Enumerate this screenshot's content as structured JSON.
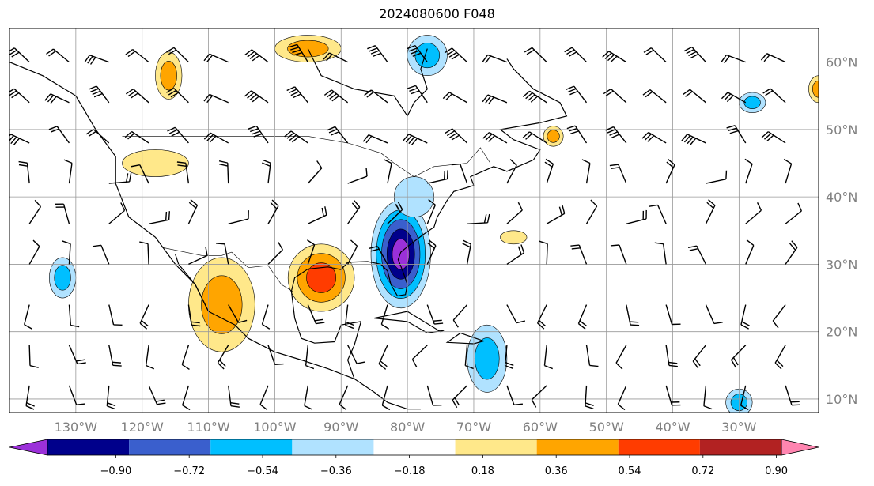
{
  "title": "2024080600 F048",
  "map": {
    "lon_range": [
      -140,
      -18
    ],
    "lat_range": [
      8,
      65
    ],
    "lon_ticks": [
      {
        "value": -130,
        "label": "130°W"
      },
      {
        "value": -120,
        "label": "120°W"
      },
      {
        "value": -110,
        "label": "110°W"
      },
      {
        "value": -100,
        "label": "100°W"
      },
      {
        "value": -90,
        "label": "90°W"
      },
      {
        "value": -80,
        "label": "80°W"
      },
      {
        "value": -70,
        "label": "70°W"
      },
      {
        "value": -60,
        "label": "60°W"
      },
      {
        "value": -50,
        "label": "50°W"
      },
      {
        "value": -40,
        "label": "40°W"
      },
      {
        "value": -30,
        "label": "30°W"
      }
    ],
    "lat_ticks": [
      {
        "value": 10,
        "label": "10°N"
      },
      {
        "value": 20,
        "label": "20°N"
      },
      {
        "value": 30,
        "label": "30°N"
      },
      {
        "value": 40,
        "label": "40°N"
      },
      {
        "value": 50,
        "label": "50°N"
      },
      {
        "value": 60,
        "label": "60°N"
      }
    ],
    "grid": true,
    "wind_barbs": true
  },
  "colorbar": {
    "extend": "both",
    "colors": [
      "#9b30d9",
      "#00008b",
      "#3a5fcd",
      "#00bfff",
      "#b0e2ff",
      "#ffffff",
      "#ffe88a",
      "#ffa500",
      "#ff3c00",
      "#b22222",
      "#ff85b0"
    ],
    "levels": [
      {
        "value": -0.9,
        "label": "−0.90"
      },
      {
        "value": -0.72,
        "label": "−0.72"
      },
      {
        "value": -0.54,
        "label": "−0.54"
      },
      {
        "value": -0.36,
        "label": "−0.36"
      },
      {
        "value": -0.18,
        "label": "−0.18"
      },
      {
        "value": 0.18,
        "label": "0.18"
      },
      {
        "value": 0.36,
        "label": "0.36"
      },
      {
        "value": 0.54,
        "label": "0.54"
      },
      {
        "value": 0.72,
        "label": "0.72"
      },
      {
        "value": 0.9,
        "label": "0.90"
      }
    ]
  },
  "anomaly_regions": [
    {
      "name": "southeast-us-cyclone",
      "lon": -81,
      "lat": 31.5,
      "rx": 4.5,
      "ry": 8,
      "levels": [
        -0.18,
        -0.36,
        -0.54,
        -0.72,
        -0.9
      ]
    },
    {
      "name": "mid-atlantic",
      "lon": -79,
      "lat": 40,
      "rx": 3,
      "ry": 3,
      "levels": [
        -0.18
      ]
    },
    {
      "name": "hudson-bay-north",
      "lon": -77,
      "lat": 61,
      "rx": 3,
      "ry": 3,
      "levels": [
        -0.18,
        -0.36
      ]
    },
    {
      "name": "caribbean-east",
      "lon": -68,
      "lat": 16,
      "rx": 3,
      "ry": 5,
      "levels": [
        -0.18,
        -0.36
      ]
    },
    {
      "name": "pacific-west",
      "lon": -132,
      "lat": 28,
      "rx": 2,
      "ry": 3,
      "levels": [
        -0.18,
        -0.36
      ]
    },
    {
      "name": "atlantic-sw",
      "lon": -30,
      "lat": 9.5,
      "rx": 2,
      "ry": 2,
      "levels": [
        -0.18,
        -0.36
      ]
    },
    {
      "name": "atlantic-north",
      "lon": -28,
      "lat": 54,
      "rx": 2,
      "ry": 1.5,
      "levels": [
        -0.18,
        -0.36
      ]
    },
    {
      "name": "mexico-west",
      "lon": -108,
      "lat": 24,
      "rx": 5,
      "ry": 7,
      "levels": [
        0.18,
        0.36
      ]
    },
    {
      "name": "texas-gulf",
      "lon": -93,
      "lat": 28,
      "rx": 5,
      "ry": 5,
      "levels": [
        0.18,
        0.36,
        0.54
      ]
    },
    {
      "name": "yukon",
      "lon": -116,
      "lat": 58,
      "rx": 2,
      "ry": 3.5,
      "levels": [
        0.18,
        0.36
      ]
    },
    {
      "name": "northern-rockies",
      "lon": -118,
      "lat": 45,
      "rx": 5,
      "ry": 2,
      "levels": [
        0.18
      ]
    },
    {
      "name": "hudson-west",
      "lon": -95,
      "lat": 62,
      "rx": 5,
      "ry": 2,
      "levels": [
        0.18,
        0.36
      ]
    },
    {
      "name": "newfoundland",
      "lon": -58,
      "lat": 49,
      "rx": 1.5,
      "ry": 1.5,
      "levels": [
        0.18,
        0.36
      ]
    },
    {
      "name": "atlantic-mid",
      "lon": -64,
      "lat": 34,
      "rx": 2,
      "ry": 1,
      "levels": [
        0.18
      ]
    },
    {
      "name": "atlantic-east-north",
      "lon": -18,
      "lat": 56,
      "rx": 1.5,
      "ry": 2,
      "levels": [
        0.18,
        0.36
      ]
    }
  ]
}
